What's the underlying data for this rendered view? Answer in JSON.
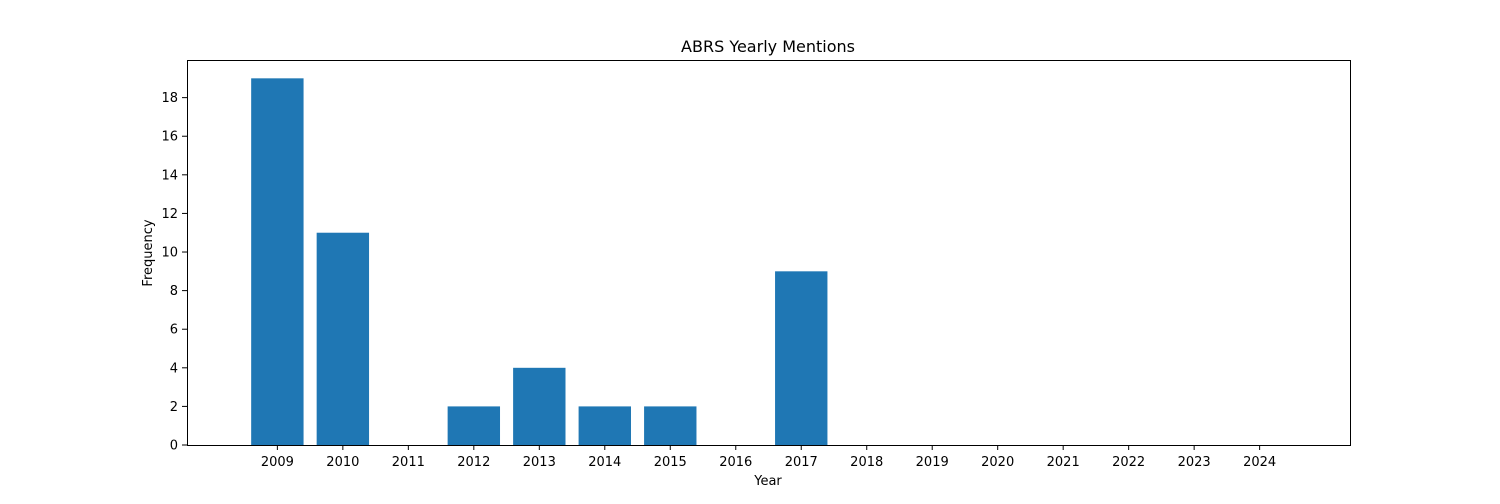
{
  "chart_data": {
    "type": "bar",
    "title": "ABRS Yearly Mentions",
    "xlabel": "Year",
    "ylabel": "Frequency",
    "categories": [
      "2009",
      "2010",
      "2011",
      "2012",
      "2013",
      "2014",
      "2015",
      "2016",
      "2017",
      "2018",
      "2019",
      "2020",
      "2021",
      "2022",
      "2023",
      "2024"
    ],
    "values": [
      19,
      11,
      0,
      2,
      4,
      2,
      2,
      0,
      9,
      0,
      0,
      0,
      0,
      0,
      0,
      0
    ],
    "ylim": [
      0,
      19.95
    ],
    "yticks": [
      0,
      2,
      4,
      6,
      8,
      10,
      12,
      14,
      16,
      18
    ],
    "bar_color": "#1f77b4",
    "grid": false,
    "legend": "none"
  }
}
